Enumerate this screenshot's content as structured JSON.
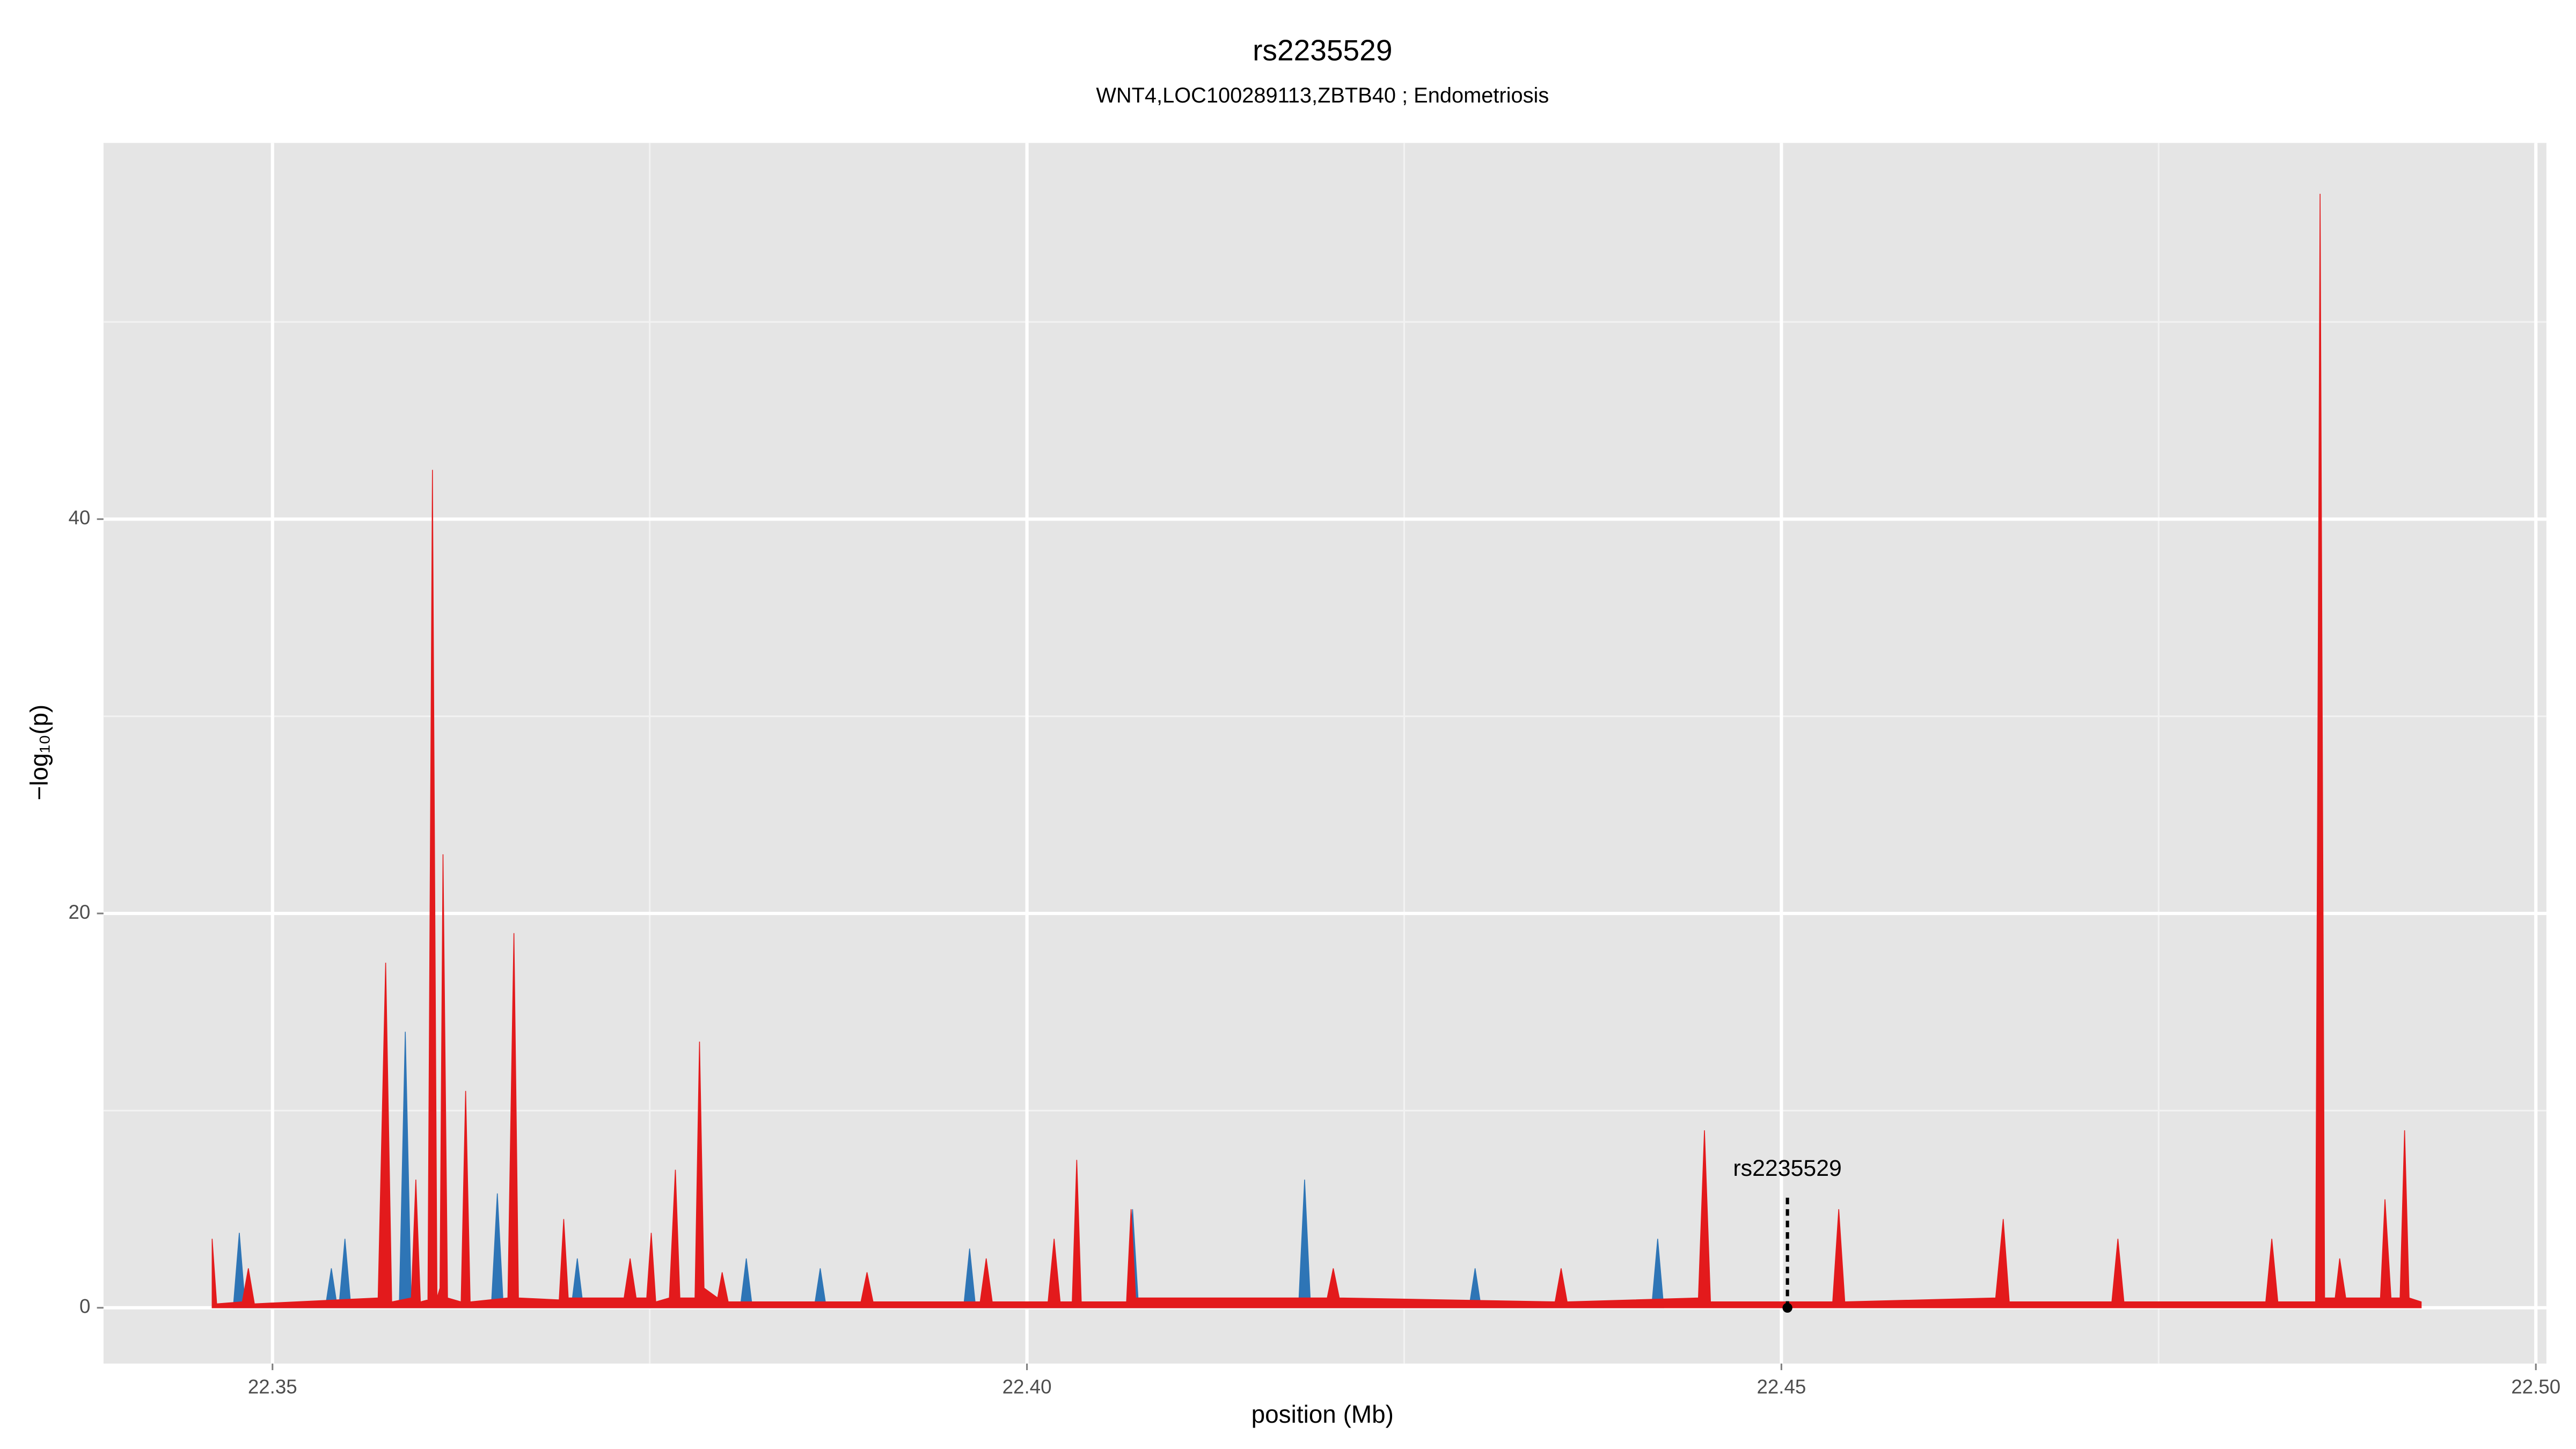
{
  "chart_data": {
    "type": "area",
    "title": "rs2235529",
    "subtitle": "WNT4,LOC100289113,ZBTB40 ; Endometriosis",
    "x_label": "position (Mb)",
    "y_label": "−log₁₀(p)",
    "xlim": [
      22.3388,
      22.5007
    ],
    "ylim": [
      -2.83,
      59.08
    ],
    "xticks": [
      {
        "value": 22.35,
        "label": "22.35"
      },
      {
        "value": 22.4,
        "label": "22.40"
      },
      {
        "value": 22.45,
        "label": "22.45"
      },
      {
        "value": 22.5,
        "label": "22.50"
      }
    ],
    "yticks": [
      0,
      20,
      40
    ],
    "grid": true,
    "series": [
      {
        "color": "#2e75b6",
        "x": [
          22.3474,
          22.3478,
          22.3482,
          22.3535,
          22.3539,
          22.3543,
          22.3544,
          22.3548,
          22.3552,
          22.3584,
          22.3588,
          22.3592,
          22.3645,
          22.3649,
          22.3653,
          22.3698,
          22.3702,
          22.3706,
          22.381,
          22.3814,
          22.3818,
          22.3859,
          22.3863,
          22.3867,
          22.3958,
          22.3962,
          22.3966,
          22.4066,
          22.407,
          22.4074,
          22.418,
          22.4184,
          22.4188,
          22.4293,
          22.4297,
          22.4301,
          22.4414,
          22.4418,
          22.4422
        ],
        "values": [
          0,
          3.8,
          0,
          0,
          2,
          0,
          0,
          3.5,
          0,
          0,
          14,
          0,
          0,
          5.8,
          0,
          0,
          2.5,
          0,
          0,
          2.5,
          0,
          0,
          2,
          0,
          0,
          3,
          0,
          0,
          5,
          0,
          0,
          6.5,
          0,
          0,
          2,
          0,
          0,
          3.5,
          0
        ]
      },
      {
        "color": "#e31a1c",
        "x": [
          22.346,
          22.3463,
          22.348,
          22.3484,
          22.3488,
          22.357,
          22.3575,
          22.3579,
          22.3592,
          22.3595,
          22.3598,
          22.3603,
          22.3606,
          22.3609,
          22.3611,
          22.3613,
          22.3616,
          22.3625,
          22.3628,
          22.3631,
          22.3656,
          22.366,
          22.3663,
          22.369,
          22.3693,
          22.3696,
          22.3733,
          22.3737,
          22.3741,
          22.3748,
          22.3751,
          22.3754,
          22.3763,
          22.3767,
          22.377,
          22.378,
          22.3783,
          22.3786,
          22.3795,
          22.3798,
          22.3802,
          22.389,
          22.3894,
          22.3898,
          22.3969,
          22.3973,
          22.3977,
          22.4014,
          22.4018,
          22.4022,
          22.403,
          22.4033,
          22.4036,
          22.4066,
          22.4069,
          22.4072,
          22.4199,
          22.4203,
          22.4207,
          22.435,
          22.4354,
          22.4358,
          22.4445,
          22.4449,
          22.4453,
          22.4534,
          22.4538,
          22.4542,
          22.4642,
          22.4647,
          22.4651,
          22.4719,
          22.4723,
          22.4727,
          22.4821,
          22.4825,
          22.4829,
          22.4854,
          22.4857,
          22.486,
          22.4867,
          22.487,
          22.4874,
          22.4897,
          22.49,
          22.4904,
          22.491,
          22.4913,
          22.4916,
          22.4924
        ],
        "values": [
          3.5,
          0.2,
          0.3,
          2,
          0.2,
          0.5,
          17.5,
          0.3,
          0.5,
          6.5,
          0.3,
          0.4,
          42.5,
          0.5,
          1,
          23,
          0.5,
          0.3,
          11,
          0.3,
          0.5,
          19,
          0.5,
          0.4,
          4.5,
          0.5,
          0.5,
          2.5,
          0.5,
          0.5,
          3.8,
          0.3,
          0.5,
          7,
          0.5,
          0.5,
          13.5,
          1,
          0.5,
          1.8,
          0.3,
          0.3,
          1.8,
          0.3,
          0.3,
          2.5,
          0.3,
          0.3,
          3.5,
          0.3,
          0.3,
          7.5,
          0.3,
          0.3,
          5,
          0.5,
          0.5,
          2,
          0.5,
          0.3,
          2,
          0.3,
          0.5,
          9,
          0.3,
          0.3,
          5,
          0.3,
          0.5,
          4.5,
          0.3,
          0.3,
          3.5,
          0.3,
          0.3,
          3.5,
          0.3,
          0.3,
          56.5,
          0.5,
          0.5,
          2.5,
          0.5,
          0.5,
          5.5,
          0.5,
          0.5,
          9,
          0.5,
          0.3
        ]
      }
    ],
    "annotation": {
      "text": "rs2235529",
      "x": 22.4504,
      "y": 0
    }
  }
}
